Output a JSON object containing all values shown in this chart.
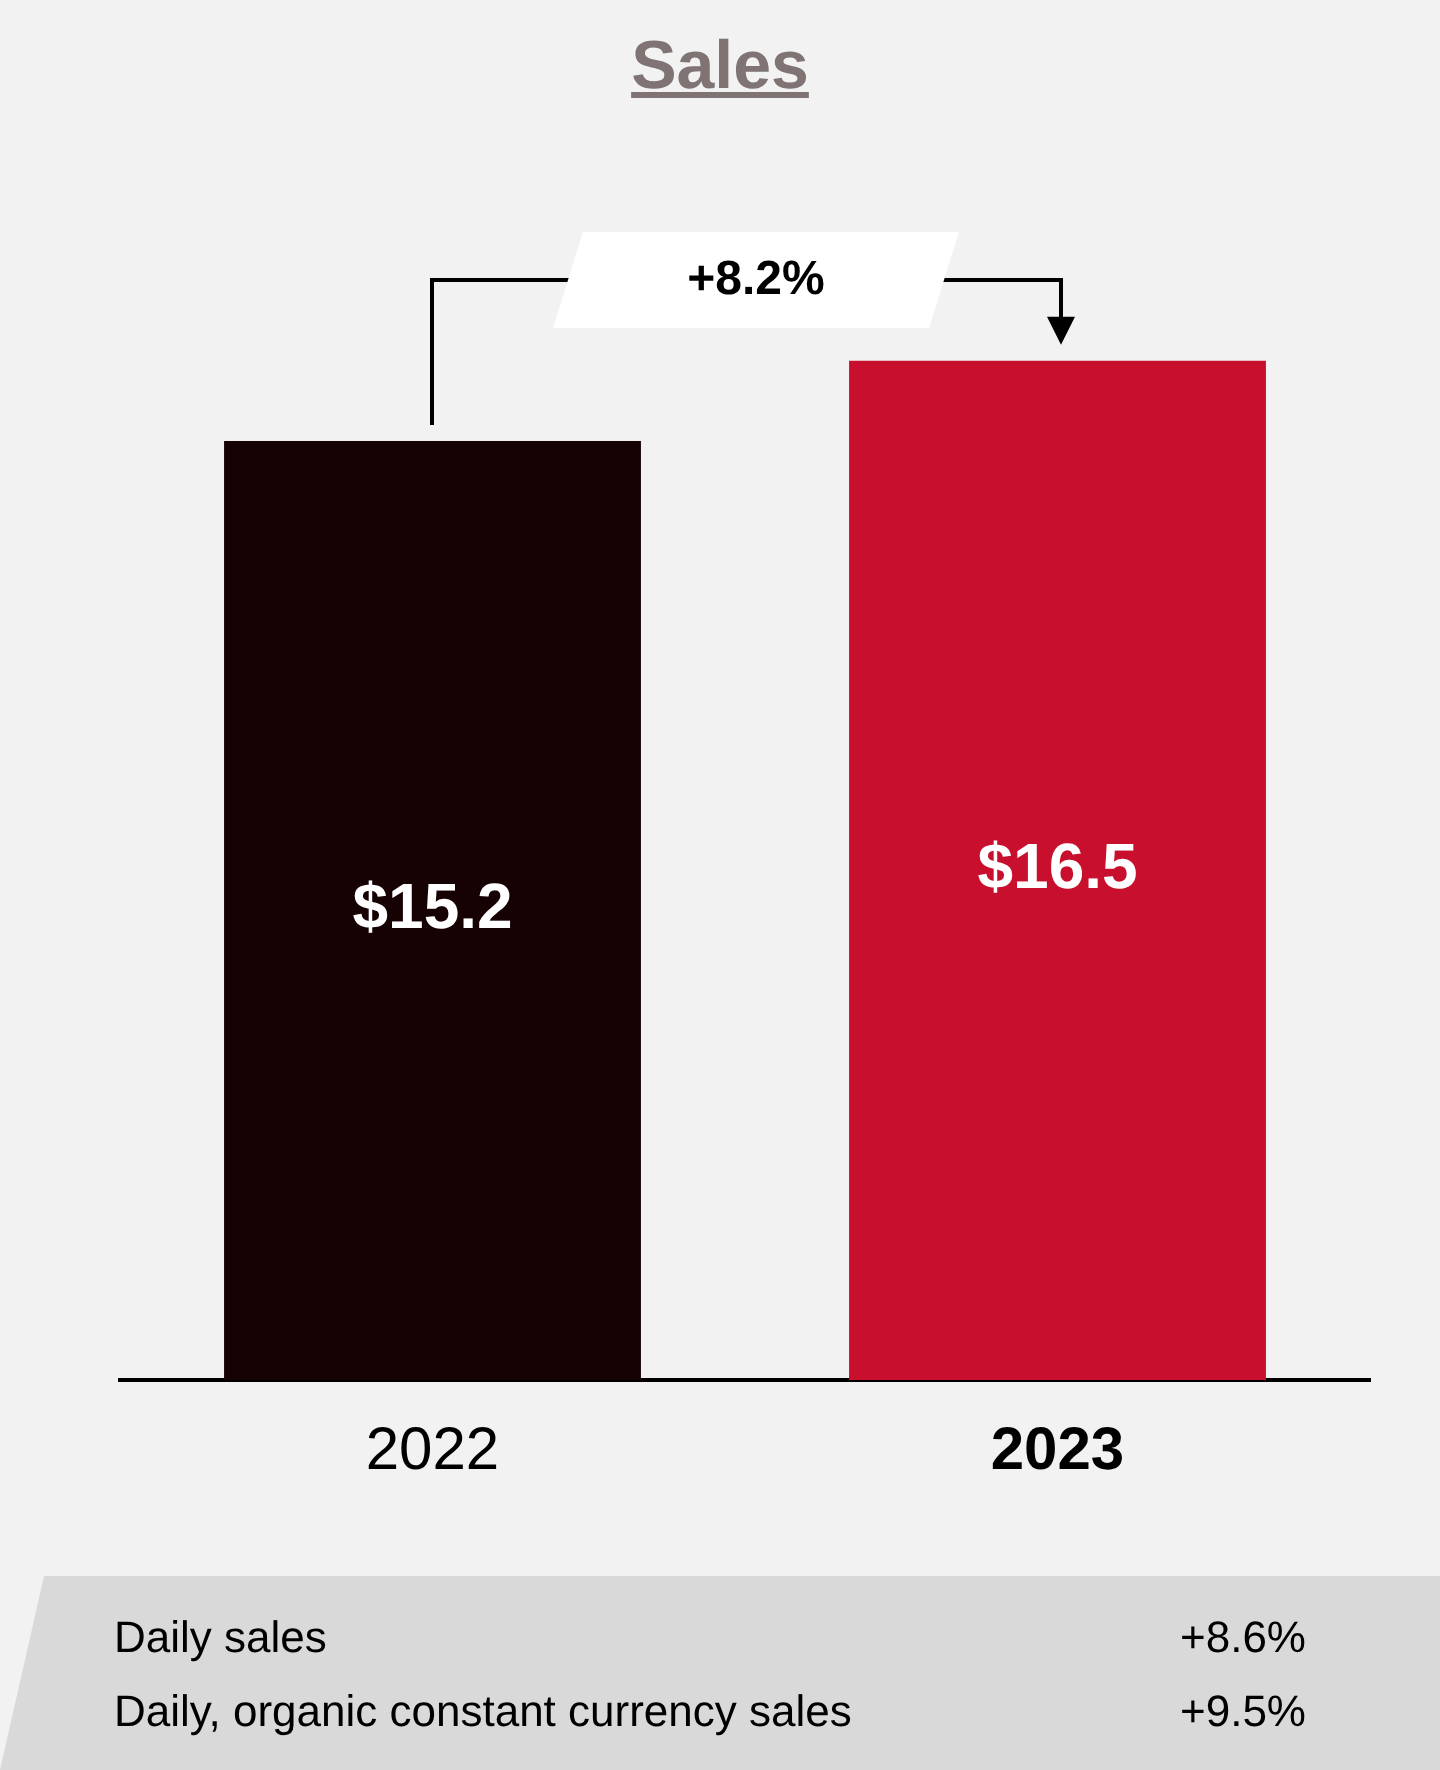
{
  "chart_data": {
    "type": "bar",
    "title": "Sales",
    "categories": [
      "2022",
      "2023"
    ],
    "values": [
      15.2,
      16.5
    ],
    "colors": [
      "#170203",
      "#c8102e"
    ],
    "value_labels": [
      "$15.2",
      "$16.5"
    ],
    "grid": false,
    "legend": false,
    "annotations": [
      "+8.2%",
      "Daily sales",
      "+8.6%",
      "Daily, organic constant currency sales",
      "+9.5%"
    ]
  }
}
